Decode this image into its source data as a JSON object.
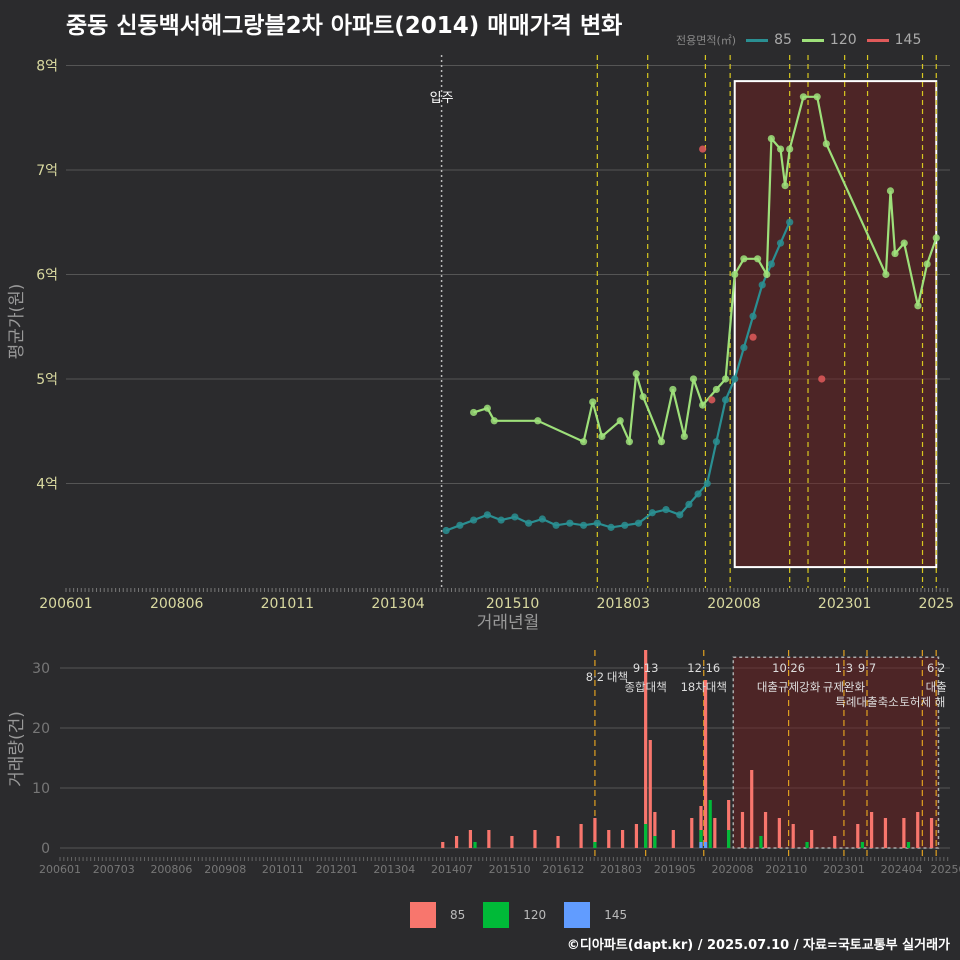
{
  "title": "중동 신동백서해그랑블2차 아파트(2014) 매매가격 변화",
  "footer": "©디아파트(dapt.kr) / 2025.07.10 / 자료=국토교통부 실거래가",
  "legend_top": {
    "label": "전용면적(㎡)",
    "items": [
      {
        "name": "85",
        "color": "#2a8f92"
      },
      {
        "name": "120",
        "color": "#9ee07a"
      },
      {
        "name": "145",
        "color": "#e05a5a"
      }
    ]
  },
  "legend_bottom": [
    {
      "name": "85",
      "color": "#f8766d"
    },
    {
      "name": "120",
      "color": "#00ba38"
    },
    {
      "name": "145",
      "color": "#619cff"
    }
  ],
  "chart_data": [
    {
      "type": "line",
      "title": "중동 신동백서해그랑블2차 아파트(2014) 매매가격 변화",
      "xlabel": "거래년월",
      "ylabel": "평균가(원)",
      "x_ticks": [
        "200601",
        "200806",
        "201011",
        "201304",
        "201510",
        "201803",
        "202008",
        "202301",
        "2025"
      ],
      "y_ticks": [
        "4억",
        "5억",
        "6억",
        "7억",
        "8억"
      ],
      "ylim": [
        3.0,
        8.1
      ],
      "y_unit": "억",
      "annotation": {
        "label": "입주",
        "x": 2014.2
      },
      "policy_lines": [
        2017.6,
        2018.7,
        2019.96,
        2020.5,
        2021.8,
        2022.2,
        2023.0,
        2023.5,
        2024.7,
        2025.0
      ],
      "highlight_box": {
        "x": [
          2020.6,
          2025.0
        ],
        "y": [
          3.2,
          7.85
        ]
      },
      "series": [
        {
          "name": "85",
          "points": [
            [
              2014.3,
              3.55
            ],
            [
              2014.6,
              3.6
            ],
            [
              2014.9,
              3.65
            ],
            [
              2015.2,
              3.7
            ],
            [
              2015.5,
              3.65
            ],
            [
              2015.8,
              3.68
            ],
            [
              2016.1,
              3.62
            ],
            [
              2016.4,
              3.66
            ],
            [
              2016.7,
              3.6
            ],
            [
              2017.0,
              3.62
            ],
            [
              2017.3,
              3.6
            ],
            [
              2017.6,
              3.62
            ],
            [
              2017.9,
              3.58
            ],
            [
              2018.2,
              3.6
            ],
            [
              2018.5,
              3.62
            ],
            [
              2018.8,
              3.72
            ],
            [
              2019.1,
              3.75
            ],
            [
              2019.4,
              3.7
            ],
            [
              2019.6,
              3.8
            ],
            [
              2019.8,
              3.9
            ],
            [
              2020.0,
              4.0
            ],
            [
              2020.2,
              4.4
            ],
            [
              2020.4,
              4.8
            ],
            [
              2020.6,
              5.0
            ],
            [
              2020.8,
              5.3
            ],
            [
              2021.0,
              5.6
            ],
            [
              2021.2,
              5.9
            ],
            [
              2021.4,
              6.1
            ],
            [
              2021.6,
              6.3
            ],
            [
              2021.8,
              6.5
            ]
          ]
        },
        {
          "name": "120",
          "points": [
            [
              2014.9,
              4.68
            ],
            [
              2015.2,
              4.72
            ],
            [
              2015.35,
              4.6
            ],
            [
              2016.3,
              4.6
            ],
            [
              2017.3,
              4.4
            ],
            [
              2017.5,
              4.78
            ],
            [
              2017.7,
              4.45
            ],
            [
              2018.1,
              4.6
            ],
            [
              2018.3,
              4.4
            ],
            [
              2018.45,
              5.05
            ],
            [
              2018.6,
              4.83
            ],
            [
              2019.0,
              4.4
            ],
            [
              2019.25,
              4.9
            ],
            [
              2019.5,
              4.45
            ],
            [
              2019.7,
              5.0
            ],
            [
              2019.9,
              4.75
            ],
            [
              2020.2,
              4.9
            ],
            [
              2020.4,
              5.0
            ],
            [
              2020.6,
              6.0
            ],
            [
              2020.8,
              6.15
            ],
            [
              2021.1,
              6.15
            ],
            [
              2021.3,
              6.0
            ],
            [
              2021.4,
              7.3
            ],
            [
              2021.6,
              7.2
            ],
            [
              2021.7,
              6.85
            ],
            [
              2021.8,
              7.2
            ],
            [
              2022.1,
              7.7
            ],
            [
              2022.4,
              7.7
            ],
            [
              2022.6,
              7.25
            ],
            [
              2023.9,
              6.0
            ],
            [
              2024.0,
              6.8
            ],
            [
              2024.1,
              6.2
            ],
            [
              2024.3,
              6.3
            ],
            [
              2024.6,
              5.7
            ],
            [
              2024.8,
              6.1
            ],
            [
              2025.0,
              6.35
            ]
          ]
        },
        {
          "name": "145",
          "points": [
            [
              2019.9,
              7.2
            ],
            [
              2020.1,
              4.8
            ],
            [
              2021.0,
              5.4
            ],
            [
              2022.5,
              5.0
            ]
          ]
        }
      ]
    },
    {
      "type": "bar",
      "ylabel": "거래량(건)",
      "x_ticks": [
        "200601",
        "200703",
        "200806",
        "200908",
        "201011",
        "201201",
        "201304",
        "201407",
        "201510",
        "201612",
        "201803",
        "201905",
        "202008",
        "202110",
        "202301",
        "202404",
        "202505"
      ],
      "y_ticks": [
        0,
        10,
        20,
        30
      ],
      "ylim": [
        0,
        33
      ],
      "events": [
        {
          "x": 2017.6,
          "date": "8·2",
          "label": "대책"
        },
        {
          "x": 2018.7,
          "date": "9·13",
          "label": "종합대책"
        },
        {
          "x": 2019.96,
          "date": "12·16",
          "label": "18차대책"
        },
        {
          "x": 2021.8,
          "date": "10·26",
          "label": "대출규제강화"
        },
        {
          "x": 2023.0,
          "date": "1·3",
          "label": "규제완화"
        },
        {
          "x": 2023.5,
          "date": "9·7",
          "label": "특례대출축소"
        },
        {
          "x": 2024.7,
          "date": "",
          "label": "토허제 해"
        },
        {
          "x": 2025.0,
          "date": "6·2",
          "label": "대출"
        }
      ],
      "series": [
        {
          "name": "85",
          "values": [
            [
              2014.3,
              1
            ],
            [
              2014.6,
              2
            ],
            [
              2014.9,
              3
            ],
            [
              2015.3,
              3
            ],
            [
              2015.8,
              2
            ],
            [
              2016.3,
              3
            ],
            [
              2016.8,
              2
            ],
            [
              2017.3,
              4
            ],
            [
              2017.6,
              5
            ],
            [
              2017.9,
              3
            ],
            [
              2018.2,
              3
            ],
            [
              2018.5,
              4
            ],
            [
              2018.7,
              33
            ],
            [
              2018.8,
              18
            ],
            [
              2018.9,
              6
            ],
            [
              2019.3,
              3
            ],
            [
              2019.7,
              5
            ],
            [
              2019.9,
              7
            ],
            [
              2020.0,
              28
            ],
            [
              2020.2,
              5
            ],
            [
              2020.5,
              8
            ],
            [
              2020.8,
              6
            ],
            [
              2021.0,
              13
            ],
            [
              2021.3,
              6
            ],
            [
              2021.6,
              5
            ],
            [
              2021.9,
              4
            ],
            [
              2022.3,
              3
            ],
            [
              2022.8,
              2
            ],
            [
              2023.3,
              4
            ],
            [
              2023.6,
              6
            ],
            [
              2023.9,
              5
            ],
            [
              2024.3,
              5
            ],
            [
              2024.6,
              6
            ],
            [
              2024.9,
              5
            ]
          ]
        },
        {
          "name": "120",
          "values": [
            [
              2015.0,
              1
            ],
            [
              2017.6,
              1
            ],
            [
              2018.7,
              4
            ],
            [
              2018.9,
              2
            ],
            [
              2019.9,
              3
            ],
            [
              2020.1,
              8
            ],
            [
              2020.5,
              3
            ],
            [
              2021.2,
              2
            ],
            [
              2022.2,
              1
            ],
            [
              2023.4,
              1
            ],
            [
              2024.4,
              1
            ]
          ]
        },
        {
          "name": "145",
          "values": [
            [
              2019.9,
              1
            ],
            [
              2020.0,
              1
            ]
          ]
        }
      ]
    }
  ]
}
